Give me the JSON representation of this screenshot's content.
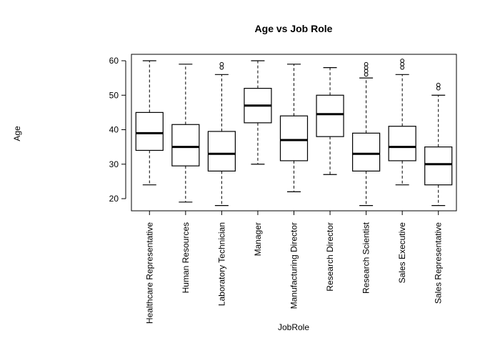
{
  "chart_data": {
    "type": "box",
    "title": "Age vs Job Role",
    "xlabel": "JobRole",
    "ylabel": "Age",
    "ylim": [
      16,
      62
    ],
    "yticks": [
      20,
      30,
      40,
      50,
      60
    ],
    "grid": false,
    "categories": [
      "Healthcare Representative",
      "Human Resources",
      "Laboratory Technician",
      "Manager",
      "Manufacturing Director",
      "Research Director",
      "Research Scientist",
      "Sales Executive",
      "Sales Representative"
    ],
    "boxes": [
      {
        "min": 24,
        "q1": 34,
        "median": 39,
        "q3": 45,
        "max": 60,
        "outliers": []
      },
      {
        "min": 19,
        "q1": 29.5,
        "median": 35,
        "q3": 41.5,
        "max": 59,
        "outliers": []
      },
      {
        "min": 18,
        "q1": 28,
        "median": 33,
        "q3": 39.5,
        "max": 56,
        "outliers": [
          58,
          59
        ]
      },
      {
        "min": 30,
        "q1": 42,
        "median": 47,
        "q3": 52,
        "max": 60,
        "outliers": []
      },
      {
        "min": 22,
        "q1": 31,
        "median": 37,
        "q3": 44,
        "max": 59,
        "outliers": []
      },
      {
        "min": 27,
        "q1": 38,
        "median": 44.5,
        "q3": 50,
        "max": 58,
        "outliers": []
      },
      {
        "min": 18,
        "q1": 28,
        "median": 33,
        "q3": 39,
        "max": 55,
        "outliers": [
          56,
          57,
          58,
          59
        ]
      },
      {
        "min": 24,
        "q1": 31,
        "median": 35,
        "q3": 41,
        "max": 56,
        "outliers": [
          58,
          59,
          60
        ]
      },
      {
        "min": 18,
        "q1": 24,
        "median": 30,
        "q3": 35,
        "max": 50,
        "outliers": [
          52,
          53
        ]
      }
    ]
  }
}
